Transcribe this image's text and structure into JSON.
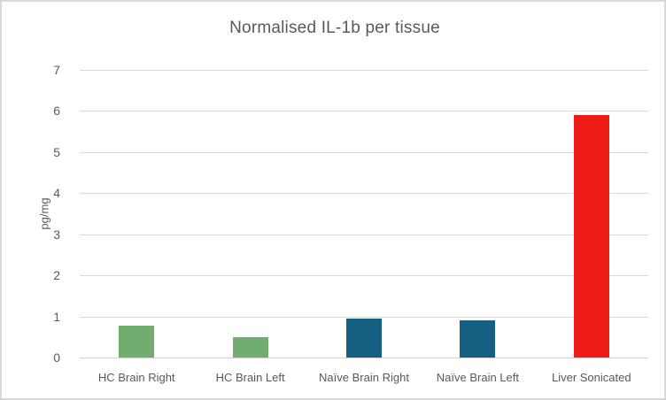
{
  "chart_data": {
    "type": "bar",
    "title": "Normalised IL-1b per tissue",
    "categories": [
      "HC Brain Right",
      "HC Brain Left",
      "Naïve Brain Right",
      "Naïve Brain Left",
      "Liver Sonicated"
    ],
    "values": [
      0.8,
      0.52,
      0.97,
      0.93,
      5.93
    ],
    "bar_colors": [
      "#70AD6F",
      "#70AD6F",
      "#156082",
      "#156082",
      "#ED1C16"
    ],
    "xlabel": "",
    "ylabel": "pg/mg",
    "ylim": [
      0,
      7
    ],
    "ytick_step": 1,
    "grid": true,
    "legend": "none"
  },
  "colors": {
    "text": "#595959",
    "gridline": "#D9D9D9",
    "frame_border": "#D9D9D9",
    "background": "#FFFFFF"
  }
}
